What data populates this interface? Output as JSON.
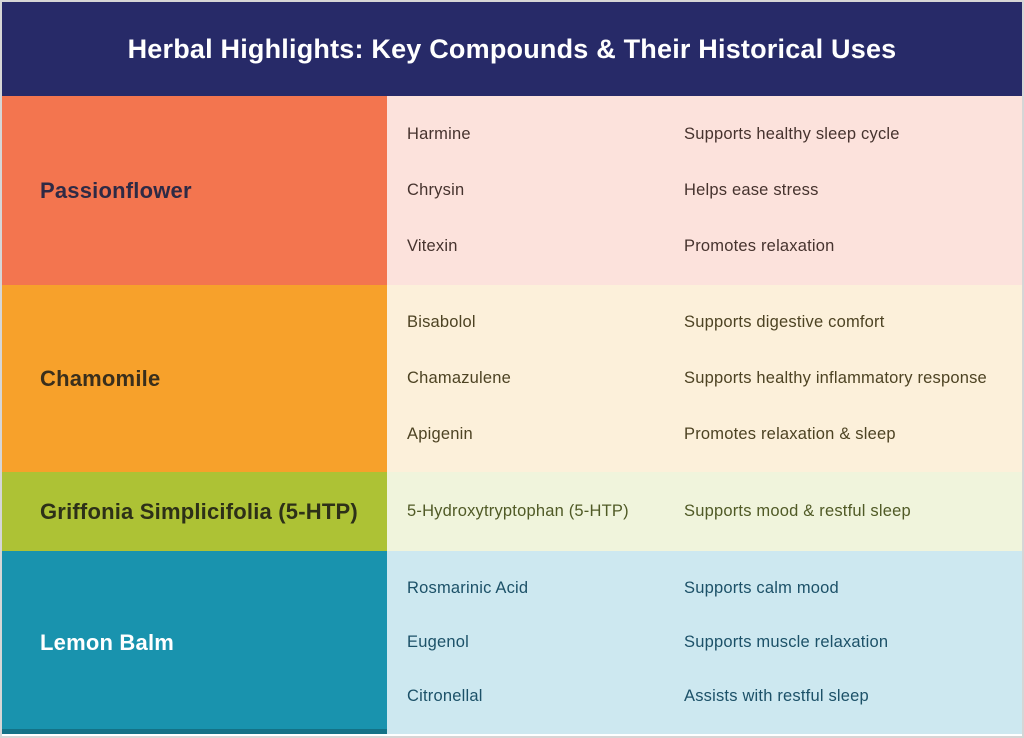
{
  "header": {
    "title": "Herbal Highlights: Key Compounds & Their Historical Uses",
    "background": "#272a68",
    "text_color": "#ffffff"
  },
  "table": {
    "rows": [
      {
        "herb": "Passionflower",
        "herb_bg": "#f3754f",
        "herb_text": "#2e2a45",
        "body_bg": "#fce2dc",
        "body_text": "#46332e",
        "entries": [
          {
            "compound": "Harmine",
            "use": "Supports healthy sleep cycle"
          },
          {
            "compound": "Chrysin",
            "use": "Helps ease stress"
          },
          {
            "compound": "Vitexin",
            "use": "Promotes relaxation"
          }
        ]
      },
      {
        "herb": "Chamomile",
        "herb_bg": "#f7a12b",
        "herb_text": "#3a2f1c",
        "body_bg": "#fcf0da",
        "body_text": "#4d4323",
        "entries": [
          {
            "compound": "Bisabolol",
            "use": "Supports digestive comfort"
          },
          {
            "compound": "Chamazulene",
            "use": "Supports healthy inflammatory response"
          },
          {
            "compound": "Apigenin",
            "use": "Promotes relaxation & sleep"
          }
        ]
      },
      {
        "herb": "Griffonia Simplicifolia (5-HTP)",
        "herb_bg": "#adc235",
        "herb_text": "#2d3018",
        "body_bg": "#f0f4dc",
        "body_text": "#505a26",
        "entries": [
          {
            "compound": "5-Hydroxytryptophan (5-HTP)",
            "use": "Supports mood & restful sleep"
          }
        ]
      },
      {
        "herb": "Lemon Balm",
        "herb_bg": "#1993ae",
        "herb_text": "#ffffff",
        "body_bg": "#cde8f0",
        "body_text": "#1c5168",
        "entries": [
          {
            "compound": "Rosmarinic Acid",
            "use": "Supports calm mood"
          },
          {
            "compound": "Eugenol",
            "use": "Supports muscle relaxation"
          },
          {
            "compound": "Citronellal",
            "use": "Assists with restful sleep"
          }
        ]
      }
    ]
  }
}
